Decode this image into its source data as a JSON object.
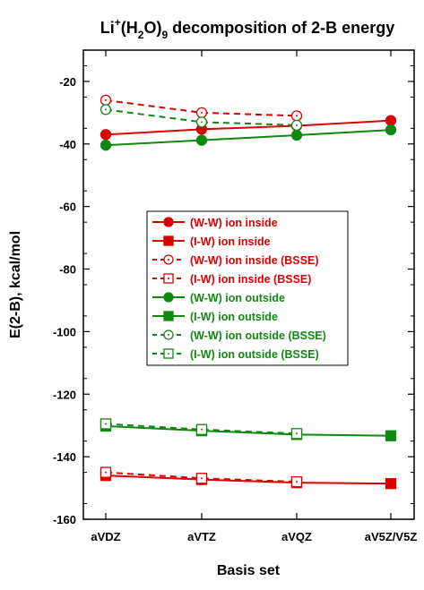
{
  "chart_data": {
    "type": "line",
    "title": "Li",
    "title_superscript": "+",
    "title_part2": "(H",
    "title_sub2": "2",
    "title_part3": "O)",
    "title_sub9": "9",
    "title_tail": " decomposition of 2-B energy",
    "xlabel": "Basis set",
    "ylabel": "E(2-B), kcal/mol",
    "categories": [
      "aVDZ",
      "aVTZ",
      "aVQZ",
      "aV5Z/V5Z"
    ],
    "ylim": [
      -160,
      -10
    ],
    "yticks": [
      -20,
      -40,
      -60,
      -80,
      -100,
      -120,
      -140,
      -160
    ],
    "grid": false,
    "legend_position": "center",
    "colors": {
      "red": "#dd0000",
      "green": "#118811",
      "axis": "#000000"
    },
    "series": [
      {
        "name": "(W-W) ion inside",
        "color": "#dd0000",
        "marker": "circle",
        "filled": true,
        "dashed": false,
        "values": [
          -37.0,
          -35.3,
          -34.2,
          -32.5
        ]
      },
      {
        "name": "(I-W) ion inside",
        "color": "#dd0000",
        "marker": "square",
        "filled": true,
        "dashed": false,
        "values": [
          -146.0,
          -147.3,
          -148.3,
          -148.6
        ]
      },
      {
        "name": "(W-W) ion inside (BSSE)",
        "color": "#dd0000",
        "marker": "circle",
        "filled": false,
        "dashed": true,
        "values": [
          -26.0,
          -30.0,
          -31.0,
          null
        ]
      },
      {
        "name": "(I-W) ion inside (BSSE)",
        "color": "#dd0000",
        "marker": "square",
        "filled": false,
        "dashed": true,
        "values": [
          -145.0,
          -146.9,
          -148.0,
          null
        ]
      },
      {
        "name": "(W-W) ion outside",
        "color": "#118811",
        "marker": "circle",
        "filled": true,
        "dashed": false,
        "values": [
          -40.4,
          -38.8,
          -37.2,
          -35.5
        ]
      },
      {
        "name": "(I-W) ion outside",
        "color": "#118811",
        "marker": "square",
        "filled": true,
        "dashed": false,
        "values": [
          -130.2,
          -131.7,
          -132.9,
          -133.3
        ]
      },
      {
        "name": "(W-W) ion outside (BSSE)",
        "color": "#118811",
        "marker": "circle",
        "filled": false,
        "dashed": true,
        "values": [
          -29.0,
          -33.0,
          -34.0,
          null
        ]
      },
      {
        "name": "(I-W) ion outside (BSSE)",
        "color": "#118811",
        "marker": "square",
        "filled": false,
        "dashed": true,
        "values": [
          -129.5,
          -131.3,
          -132.6,
          null
        ]
      }
    ]
  }
}
